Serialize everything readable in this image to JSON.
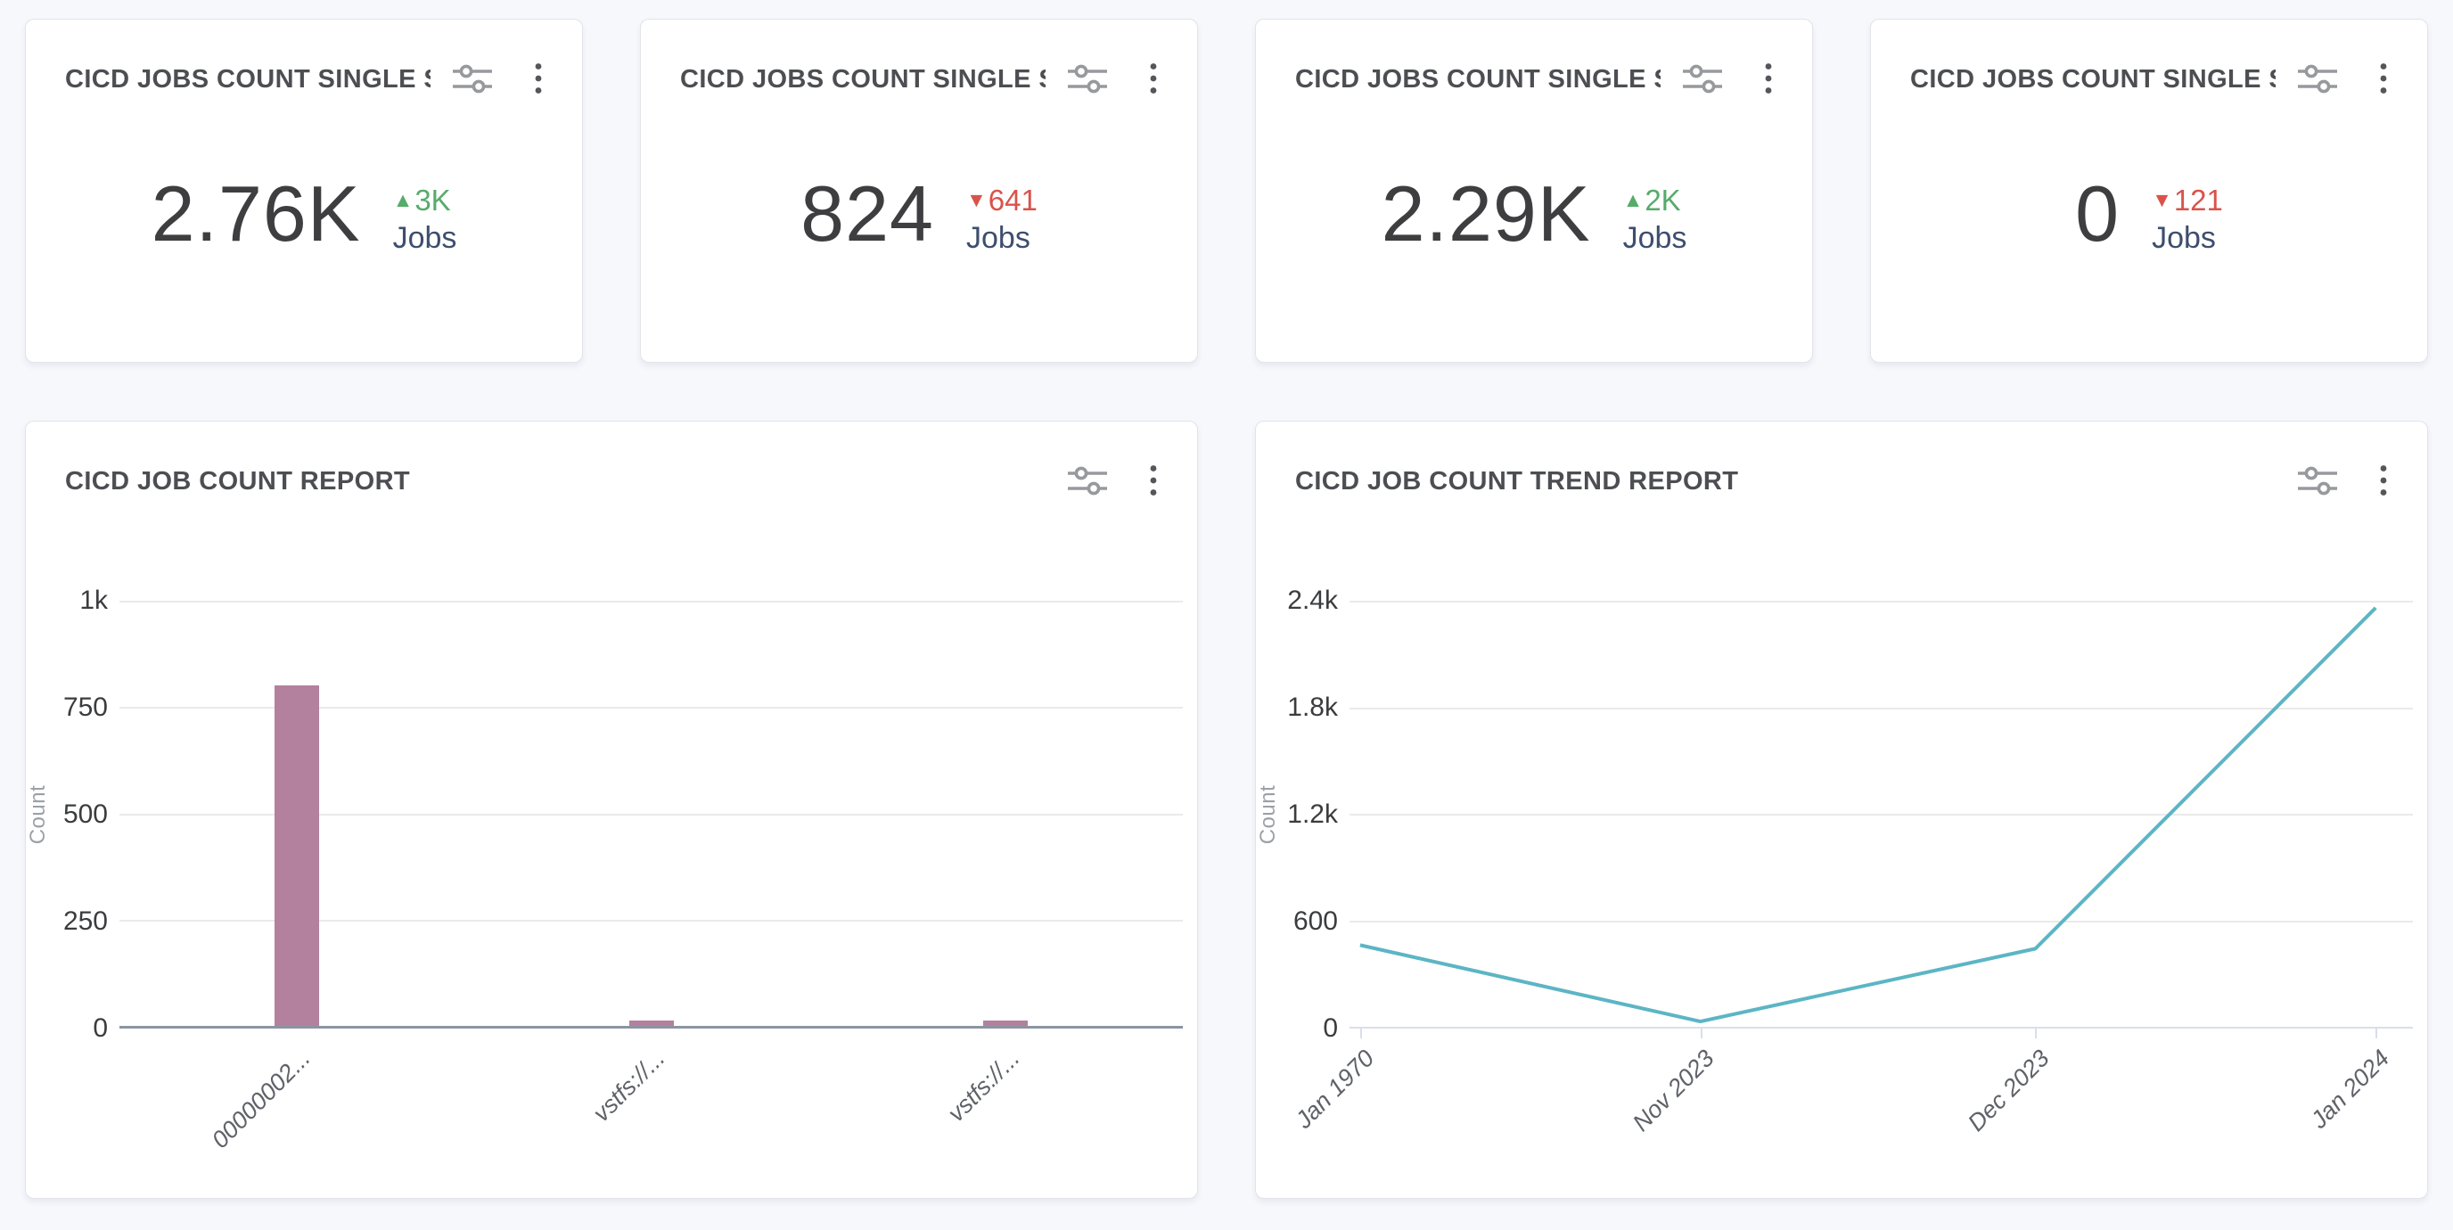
{
  "colors": {
    "up": "#57ab6b",
    "down": "#d9534b",
    "bar": "#b3809d",
    "line": "#5cb5c4",
    "unit": "#3d4e6e"
  },
  "actions": {
    "filter_icon": "sliders-icon",
    "menu_icon": "kebab-menu-icon"
  },
  "stat_cards": [
    {
      "title": "CICD JOBS COUNT SINGLE S...",
      "value": "2.76K",
      "delta": "3K",
      "delta_dir": "up",
      "unit": "Jobs"
    },
    {
      "title": "CICD JOBS COUNT SINGLE S...",
      "value": "824",
      "delta": "641",
      "delta_dir": "down",
      "unit": "Jobs"
    },
    {
      "title": "CICD JOBS COUNT SINGLE S...",
      "value": "2.29K",
      "delta": "2K",
      "delta_dir": "up",
      "unit": "Jobs"
    },
    {
      "title": "CICD JOBS COUNT SINGLE S...",
      "value": "0",
      "delta": "121",
      "delta_dir": "down",
      "unit": "Jobs"
    }
  ],
  "chart_data": [
    {
      "type": "bar",
      "title": "CICD JOB COUNT REPORT",
      "categories": [
        "00000002...",
        "vstfs://...",
        "vstfs://..."
      ],
      "values": [
        800,
        12,
        12
      ],
      "xlabel": "",
      "ylabel": "Count",
      "ylim": [
        0,
        1000
      ],
      "yticks": [
        {
          "label": "1k",
          "value": 1000
        },
        {
          "label": "750",
          "value": 750
        },
        {
          "label": "500",
          "value": 500
        },
        {
          "label": "250",
          "value": 250
        },
        {
          "label": "0",
          "value": 0
        }
      ],
      "grid": true,
      "legend": "none"
    },
    {
      "type": "line",
      "title": "CICD JOB COUNT TREND REPORT",
      "x": [
        "Jan 1970",
        "Nov 2023",
        "Dec 2023",
        "Jan 2024"
      ],
      "x_positions": [
        0.01,
        0.33,
        0.645,
        0.965
      ],
      "values": [
        460,
        30,
        440,
        2360
      ],
      "xlabel": "",
      "ylabel": "Count",
      "ylim": [
        0,
        2400
      ],
      "yticks": [
        {
          "label": "2.4k",
          "value": 2400
        },
        {
          "label": "1.8k",
          "value": 1800
        },
        {
          "label": "1.2k",
          "value": 1200
        },
        {
          "label": "600",
          "value": 600
        },
        {
          "label": "0",
          "value": 0
        }
      ],
      "grid": true,
      "legend": "none"
    }
  ]
}
